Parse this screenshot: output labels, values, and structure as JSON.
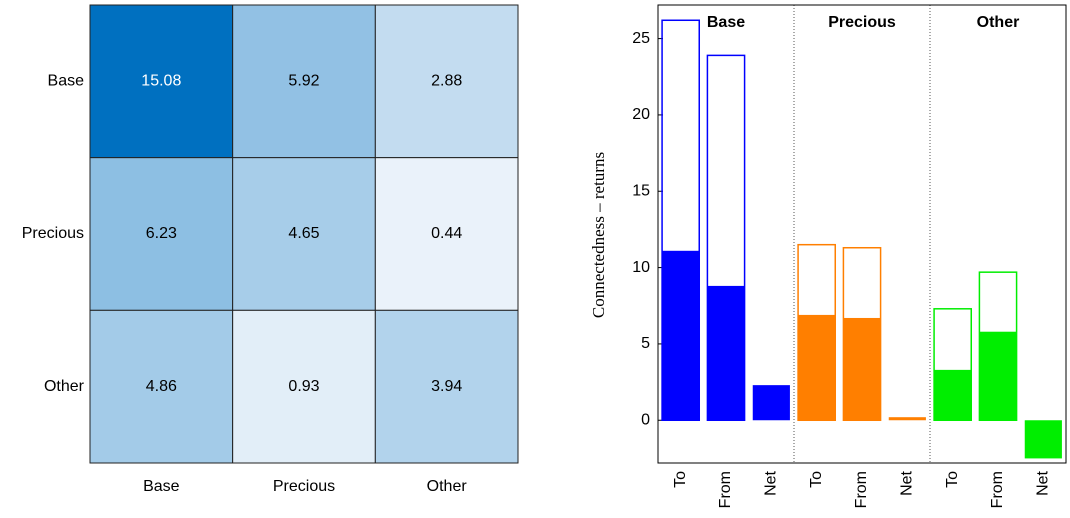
{
  "chart_data": [
    {
      "type": "heatmap",
      "rows": [
        "Base",
        "Precious",
        "Other"
      ],
      "columns": [
        "Base",
        "Precious",
        "Other"
      ],
      "values": [
        [
          15.08,
          5.92,
          2.88
        ],
        [
          6.23,
          4.65,
          0.44
        ],
        [
          4.86,
          0.93,
          3.94
        ]
      ],
      "colormap": [
        "#eaf2fa",
        "#0070c0"
      ]
    },
    {
      "type": "bar",
      "ylabel": "Connectedness – returns",
      "ylim": [
        -2.8,
        27.2
      ],
      "yticks": [
        0,
        5,
        10,
        15,
        20,
        25
      ],
      "groups": [
        {
          "label": "Base",
          "color": "#0000ff",
          "categories": [
            "To",
            "From",
            "Net"
          ],
          "outline": [
            26.2,
            23.9,
            null
          ],
          "filled": [
            11.1,
            8.8,
            2.3
          ]
        },
        {
          "label": "Precious",
          "color": "#ff7f00",
          "categories": [
            "To",
            "From",
            "Net"
          ],
          "outline": [
            11.5,
            11.3,
            null
          ],
          "filled": [
            6.9,
            6.7,
            0.2
          ]
        },
        {
          "label": "Other",
          "color": "#00ee00",
          "categories": [
            "To",
            "From",
            "Net"
          ],
          "outline": [
            7.3,
            9.7,
            null
          ],
          "filled": [
            3.3,
            5.8,
            -2.5
          ]
        }
      ]
    }
  ]
}
